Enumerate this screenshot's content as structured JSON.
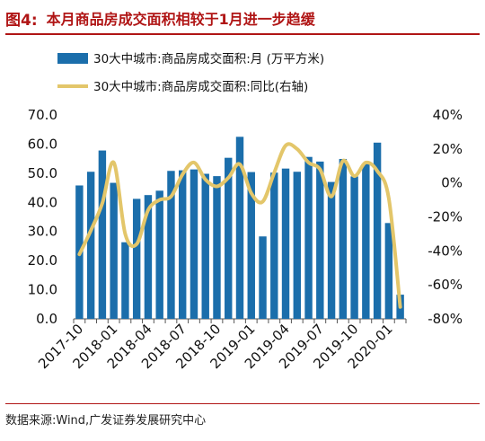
{
  "header": {
    "figure_label": "图4:",
    "title": "本月商品房成交面积相较于1月进一步趋缓"
  },
  "footer": {
    "source": "数据来源:Wind,广发证券发展研究中心"
  },
  "colors": {
    "bar": "#1b6eab",
    "line": "#e3c66a",
    "title": "#b01515"
  },
  "chart_data": {
    "type": "bar",
    "categories": [
      "2017-10",
      "2017-11",
      "2017-12",
      "2018-01",
      "2018-02",
      "2018-03",
      "2018-04",
      "2018-05",
      "2018-06",
      "2018-07",
      "2018-08",
      "2018-09",
      "2018-10",
      "2018-11",
      "2018-12",
      "2019-01",
      "2019-02",
      "2019-03",
      "2019-04",
      "2019-05",
      "2019-06",
      "2019-07",
      "2019-08",
      "2019-09",
      "2019-10",
      "2019-11",
      "2019-12",
      "2020-01",
      "2020-02"
    ],
    "x_tick_labels": [
      "2017-10",
      "2018-01",
      "2018-04",
      "2018-07",
      "2018-10",
      "2019-01",
      "2019-04",
      "2019-07",
      "2019-10",
      "2020-01"
    ],
    "series": [
      {
        "name": "30大中城市:商品房成交面积:月 (万平方米)",
        "axis": "left",
        "kind": "bar",
        "values": [
          45.8,
          50.5,
          57.8,
          46.7,
          26.3,
          41.2,
          42.5,
          44.0,
          50.8,
          51.0,
          51.3,
          49.8,
          49.0,
          55.3,
          62.5,
          50.4,
          28.3,
          50.2,
          51.6,
          50.5,
          55.6,
          54.0,
          47.0,
          54.9,
          48.9,
          53.3,
          60.5,
          32.9,
          8.3
        ]
      },
      {
        "name": "30大中城市:商品房成交面积:同比(右轴)",
        "axis": "right",
        "kind": "line",
        "values": [
          -42,
          -28,
          -12,
          12,
          -30,
          -36,
          -16,
          -10,
          -8,
          5,
          12,
          2,
          -2,
          3,
          11,
          -6,
          -11,
          6,
          22,
          20,
          12,
          8,
          -8,
          13,
          4,
          12,
          7,
          -9,
          -73
        ]
      }
    ],
    "y_left": {
      "lim": [
        0,
        70
      ],
      "ticks": [
        "0.0",
        "10.0",
        "20.0",
        "30.0",
        "40.0",
        "50.0",
        "60.0",
        "70.0"
      ]
    },
    "y_right": {
      "lim": [
        -80,
        40
      ],
      "ticks": [
        "-80%",
        "-60%",
        "-40%",
        "-20%",
        "0%",
        "20%",
        "40%"
      ]
    },
    "legend_position": "top",
    "grid": false
  }
}
